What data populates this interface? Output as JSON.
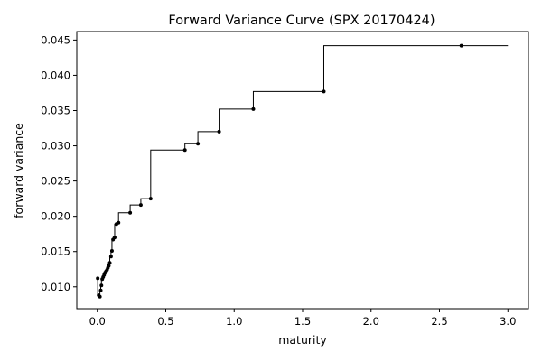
{
  "chart_data": {
    "type": "line",
    "subtype": "step",
    "title": "Forward Variance Curve (SPX 20170424)",
    "xlabel": "maturity",
    "ylabel": "forward variance",
    "xlim": [
      -0.15,
      3.15
    ],
    "ylim": [
      0.0069,
      0.0462
    ],
    "x_ticks": [
      0.0,
      0.5,
      1.0,
      1.5,
      2.0,
      2.5,
      3.0
    ],
    "x_tick_labels": [
      "0.0",
      "0.5",
      "1.0",
      "1.5",
      "2.0",
      "2.5",
      "3.0"
    ],
    "y_ticks": [
      0.01,
      0.015,
      0.02,
      0.025,
      0.03,
      0.035,
      0.04,
      0.045
    ],
    "y_tick_labels": [
      "0.010",
      "0.015",
      "0.020",
      "0.025",
      "0.030",
      "0.035",
      "0.040",
      "0.045"
    ],
    "grid": false,
    "line_color": "#000000",
    "marker_color": "#000000",
    "series": [
      {
        "points": [
          {
            "x": 0.003,
            "y": 0.0112
          },
          {
            "x": 0.01,
            "y": 0.0088
          },
          {
            "x": 0.019,
            "y": 0.0086
          },
          {
            "x": 0.025,
            "y": 0.0095
          },
          {
            "x": 0.03,
            "y": 0.0102
          },
          {
            "x": 0.036,
            "y": 0.0111
          },
          {
            "x": 0.043,
            "y": 0.0114
          },
          {
            "x": 0.05,
            "y": 0.0117
          },
          {
            "x": 0.057,
            "y": 0.012
          },
          {
            "x": 0.064,
            "y": 0.0122
          },
          {
            "x": 0.071,
            "y": 0.0124
          },
          {
            "x": 0.077,
            "y": 0.0127
          },
          {
            "x": 0.084,
            "y": 0.013
          },
          {
            "x": 0.091,
            "y": 0.0134
          },
          {
            "x": 0.1,
            "y": 0.0143
          },
          {
            "x": 0.107,
            "y": 0.0151
          },
          {
            "x": 0.115,
            "y": 0.0167
          },
          {
            "x": 0.127,
            "y": 0.017
          },
          {
            "x": 0.14,
            "y": 0.0189
          },
          {
            "x": 0.155,
            "y": 0.0191
          },
          {
            "x": 0.24,
            "y": 0.0205
          },
          {
            "x": 0.318,
            "y": 0.0216
          },
          {
            "x": 0.39,
            "y": 0.0225
          },
          {
            "x": 0.64,
            "y": 0.0294
          },
          {
            "x": 0.735,
            "y": 0.0303
          },
          {
            "x": 0.89,
            "y": 0.032
          },
          {
            "x": 1.14,
            "y": 0.0352
          },
          {
            "x": 1.655,
            "y": 0.0377
          },
          {
            "x": 2.66,
            "y": 0.0442
          }
        ],
        "x_end": 3.0
      }
    ]
  }
}
